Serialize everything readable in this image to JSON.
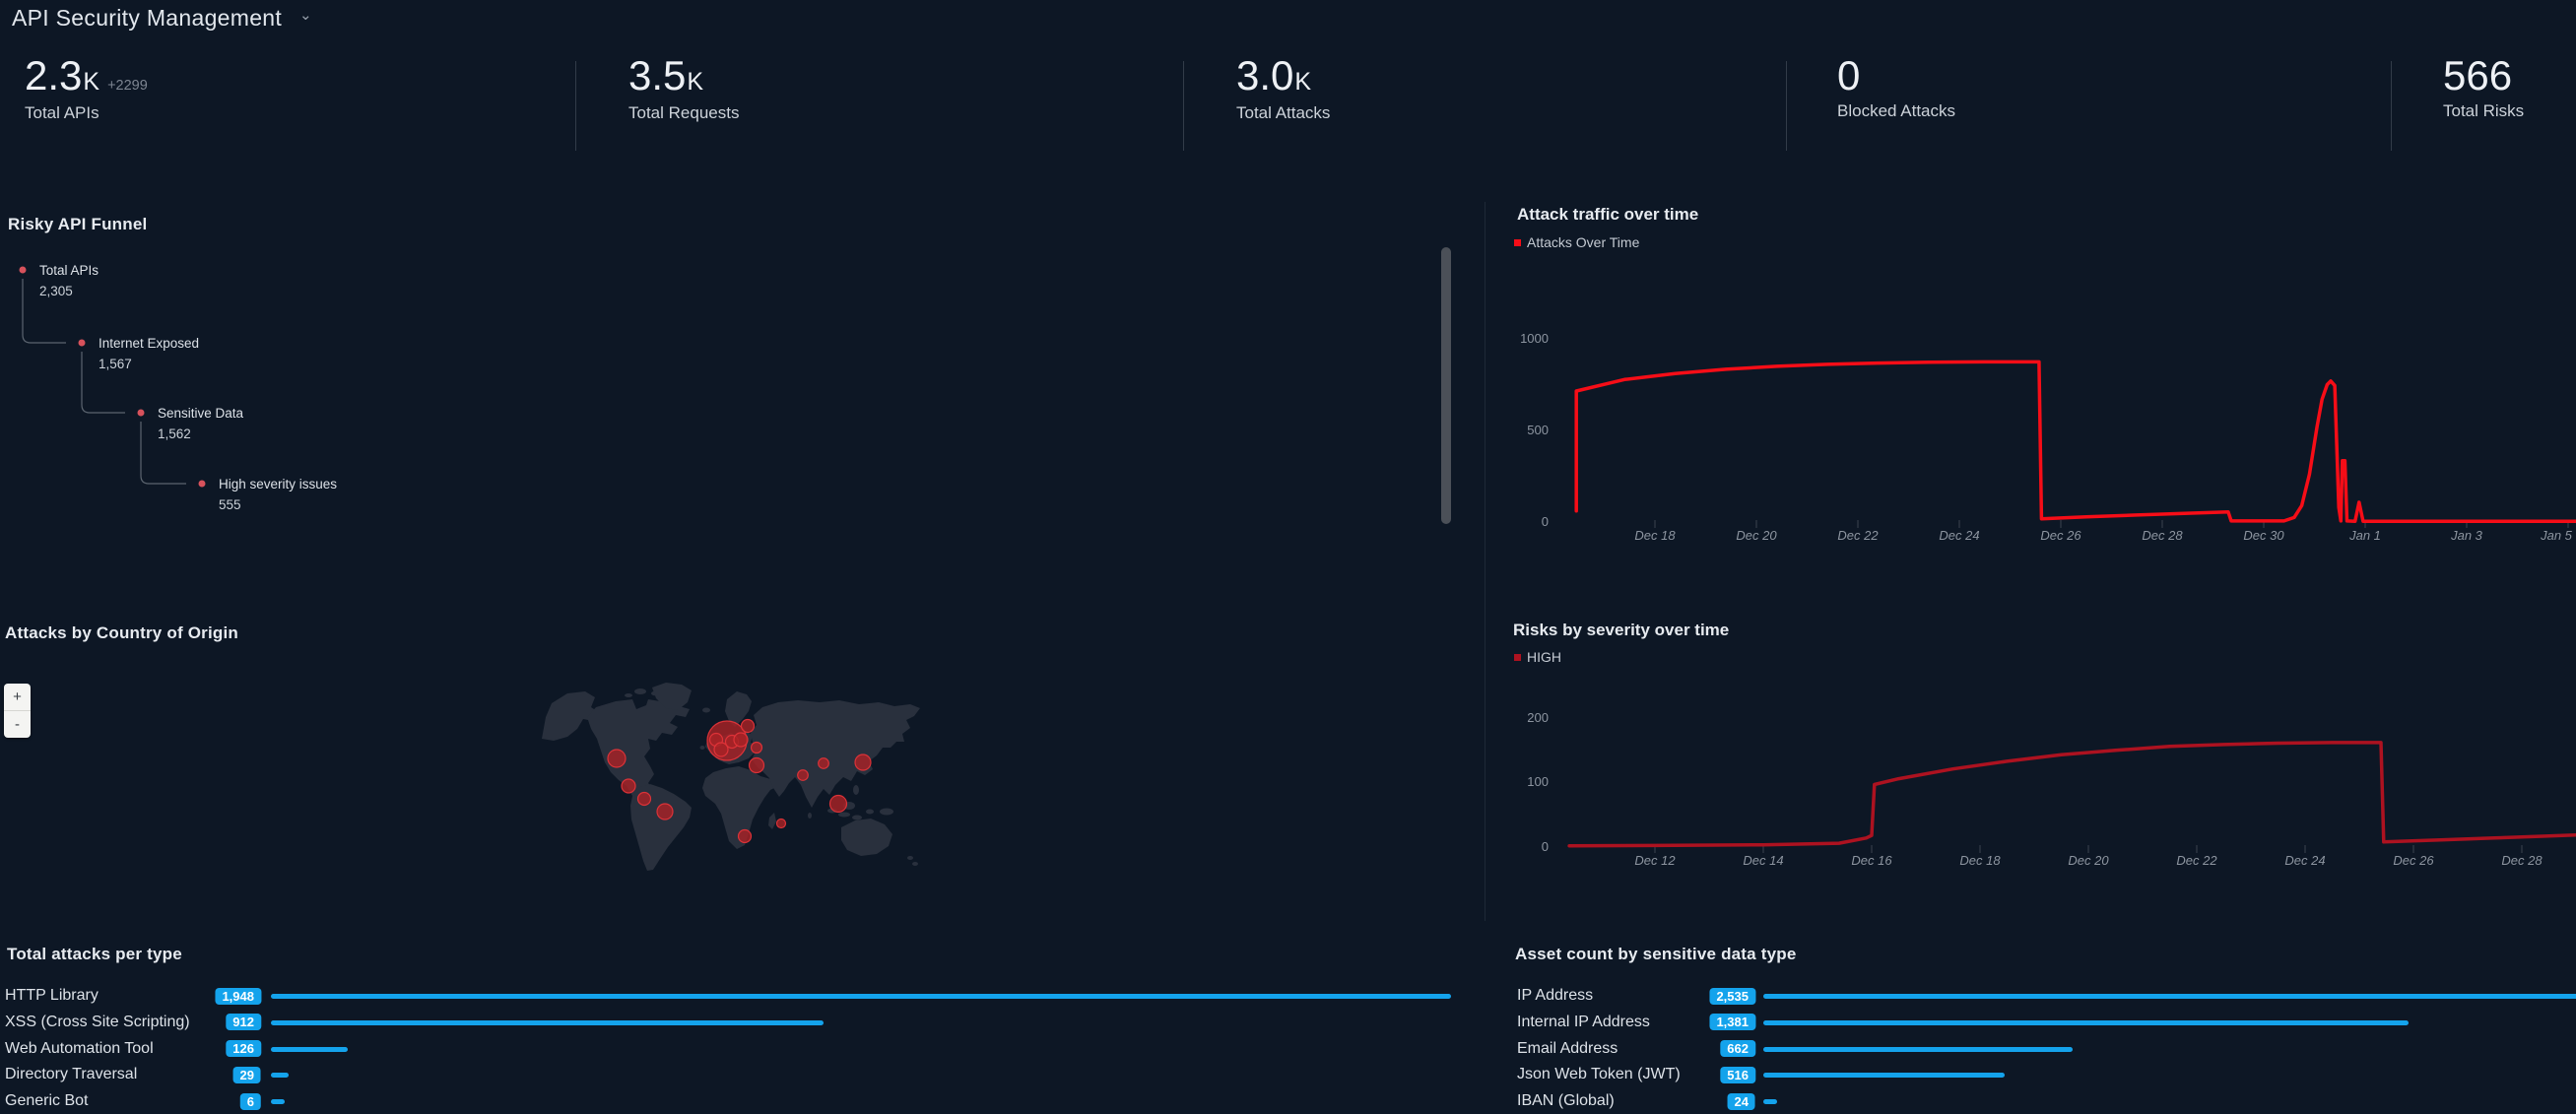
{
  "header": {
    "title": "API Security Management"
  },
  "kpis": {
    "items": [
      {
        "value": "2.3",
        "unit": "K",
        "delta": "+2299",
        "label": "Total APIs"
      },
      {
        "value": "3.5",
        "unit": "K",
        "delta": "",
        "label": "Total Requests"
      },
      {
        "value": "3.0",
        "unit": "K",
        "delta": "",
        "label": "Total Attacks"
      },
      {
        "value": "0",
        "unit": "",
        "delta": "",
        "label": "Blocked Attacks"
      },
      {
        "value": "566",
        "unit": "",
        "delta": "",
        "label": "Total Risks"
      }
    ]
  },
  "sections": {
    "funnel_title": "Risky API Funnel",
    "map_title": "Attacks by Country of Origin"
  },
  "funnel": {
    "steps": [
      {
        "label": "Total APIs",
        "value": "2,305"
      },
      {
        "label": "Internet Exposed",
        "value": "1,567"
      },
      {
        "label": "Sensitive Data",
        "value": "1,562"
      },
      {
        "label": "High severity issues",
        "value": "555"
      }
    ],
    "dot_color": "#d7525c"
  },
  "map": {
    "zoom_in": "+",
    "zoom_out": "-",
    "bubble_color": "#a82226",
    "bubble_ring_color": "#e23439",
    "bubbles": [
      {
        "x": 188,
        "y": 64,
        "r": 20
      },
      {
        "x": 177,
        "y": 63,
        "r": 6.5
      },
      {
        "x": 182,
        "y": 73,
        "r": 7
      },
      {
        "x": 193,
        "y": 65,
        "r": 6.5
      },
      {
        "x": 202,
        "y": 63,
        "r": 7
      },
      {
        "x": 209,
        "y": 49,
        "r": 6.5
      },
      {
        "x": 218,
        "y": 71,
        "r": 5.5
      },
      {
        "x": 218,
        "y": 89,
        "r": 7.5
      },
      {
        "x": 76,
        "y": 82,
        "r": 9
      },
      {
        "x": 88,
        "y": 110,
        "r": 7
      },
      {
        "x": 104,
        "y": 123,
        "r": 6.5
      },
      {
        "x": 125,
        "y": 136,
        "r": 8
      },
      {
        "x": 206,
        "y": 161,
        "r": 6.5
      },
      {
        "x": 243,
        "y": 148,
        "r": 4.5
      },
      {
        "x": 265,
        "y": 99,
        "r": 5.3
      },
      {
        "x": 286,
        "y": 87,
        "r": 5.3
      },
      {
        "x": 326,
        "y": 86,
        "r": 8
      },
      {
        "x": 301,
        "y": 128,
        "r": 8.5
      }
    ]
  },
  "chart_data": [
    {
      "id": "attack_traffic",
      "type": "line",
      "title": "Attack traffic over time",
      "legend": [
        "Attacks Over Time"
      ],
      "color": "#f60d17",
      "ylabel": "",
      "xlabel": "",
      "ylim": [
        0,
        1100
      ],
      "yticks": [
        0,
        500,
        1000
      ],
      "xticks": [
        "Dec 18",
        "Dec 20",
        "Dec 22",
        "Dec 24",
        "Dec 26",
        "Dec 28",
        "Dec 30",
        "Jan 1",
        "Jan 3",
        "Jan 5"
      ],
      "xtick_days": [
        2,
        4,
        6,
        8,
        10,
        12,
        14,
        16,
        18,
        20
      ],
      "x_unit": "days since Dec 16",
      "points": [
        [
          0.45,
          60
        ],
        [
          0.45,
          715
        ],
        [
          1.4,
          778
        ],
        [
          2.4,
          810
        ],
        [
          3.4,
          834
        ],
        [
          4.4,
          850
        ],
        [
          5.4,
          861
        ],
        [
          6.4,
          868
        ],
        [
          7.4,
          872
        ],
        [
          8.5,
          874
        ],
        [
          9.57,
          874
        ],
        [
          9.62,
          18
        ],
        [
          10.5,
          28
        ],
        [
          11.5,
          38
        ],
        [
          12.5,
          48
        ],
        [
          13.3,
          55
        ],
        [
          13.36,
          6
        ],
        [
          14.4,
          6
        ],
        [
          14.6,
          25
        ],
        [
          14.75,
          90
        ],
        [
          14.9,
          260
        ],
        [
          15.05,
          520
        ],
        [
          15.15,
          670
        ],
        [
          15.25,
          750
        ],
        [
          15.32,
          770
        ],
        [
          15.4,
          745
        ],
        [
          15.48,
          80
        ],
        [
          15.52,
          6
        ],
        [
          15.55,
          335
        ],
        [
          15.6,
          335
        ],
        [
          15.64,
          6
        ],
        [
          15.8,
          4
        ],
        [
          15.88,
          108
        ],
        [
          15.96,
          4
        ],
        [
          17.5,
          4
        ],
        [
          20.2,
          4
        ]
      ]
    },
    {
      "id": "risks_severity",
      "type": "line",
      "title": "Risks by severity over time",
      "legend": [
        "HIGH"
      ],
      "color": "#ad1220",
      "ylim": [
        0,
        220
      ],
      "yticks": [
        0,
        100,
        200
      ],
      "xticks": [
        "Dec 12",
        "Dec 14",
        "Dec 16",
        "Dec 18",
        "Dec 20",
        "Dec 22",
        "Dec 24",
        "Dec 26",
        "Dec 28"
      ],
      "xtick_days": [
        2,
        4,
        6,
        8,
        10,
        12,
        14,
        16,
        18
      ],
      "x_unit": "days since Dec 10",
      "points": [
        [
          0.42,
          2
        ],
        [
          2,
          2.5
        ],
        [
          4,
          3.5
        ],
        [
          5.4,
          6
        ],
        [
          5.9,
          14
        ],
        [
          6.0,
          18
        ],
        [
          6.05,
          97
        ],
        [
          6.5,
          106
        ],
        [
          7.5,
          121
        ],
        [
          8.5,
          133
        ],
        [
          9.5,
          143
        ],
        [
          10.5,
          150
        ],
        [
          11.5,
          156
        ],
        [
          12.5,
          159
        ],
        [
          13.5,
          161
        ],
        [
          14.5,
          162
        ],
        [
          15.4,
          162
        ],
        [
          15.45,
          8
        ],
        [
          16.5,
          11
        ],
        [
          17.5,
          14
        ],
        [
          19.05,
          19
        ]
      ]
    },
    {
      "id": "attacks_by_type",
      "type": "bar",
      "orientation": "horizontal",
      "title": "Total attacks per type",
      "categories": [
        "HTTP Library",
        "XSS (Cross Site Scripting)",
        "Web Automation Tool",
        "Directory Traversal",
        "Generic Bot"
      ],
      "values": [
        1948,
        912,
        126,
        29,
        6
      ],
      "displays": [
        "1,948",
        "912",
        "126",
        "29",
        "6"
      ],
      "color": "#14a3ec"
    },
    {
      "id": "assets_by_type",
      "type": "bar",
      "orientation": "horizontal",
      "title": "Asset count by sensitive data type",
      "categories": [
        "IP Address",
        "Internal IP Address",
        "Email Address",
        "Json Web Token (JWT)",
        "IBAN (Global)"
      ],
      "values": [
        2535,
        1381,
        662,
        516,
        24
      ],
      "displays": [
        "2,535",
        "1,381",
        "662",
        "516",
        "24"
      ],
      "color": "#14a3ec"
    }
  ]
}
